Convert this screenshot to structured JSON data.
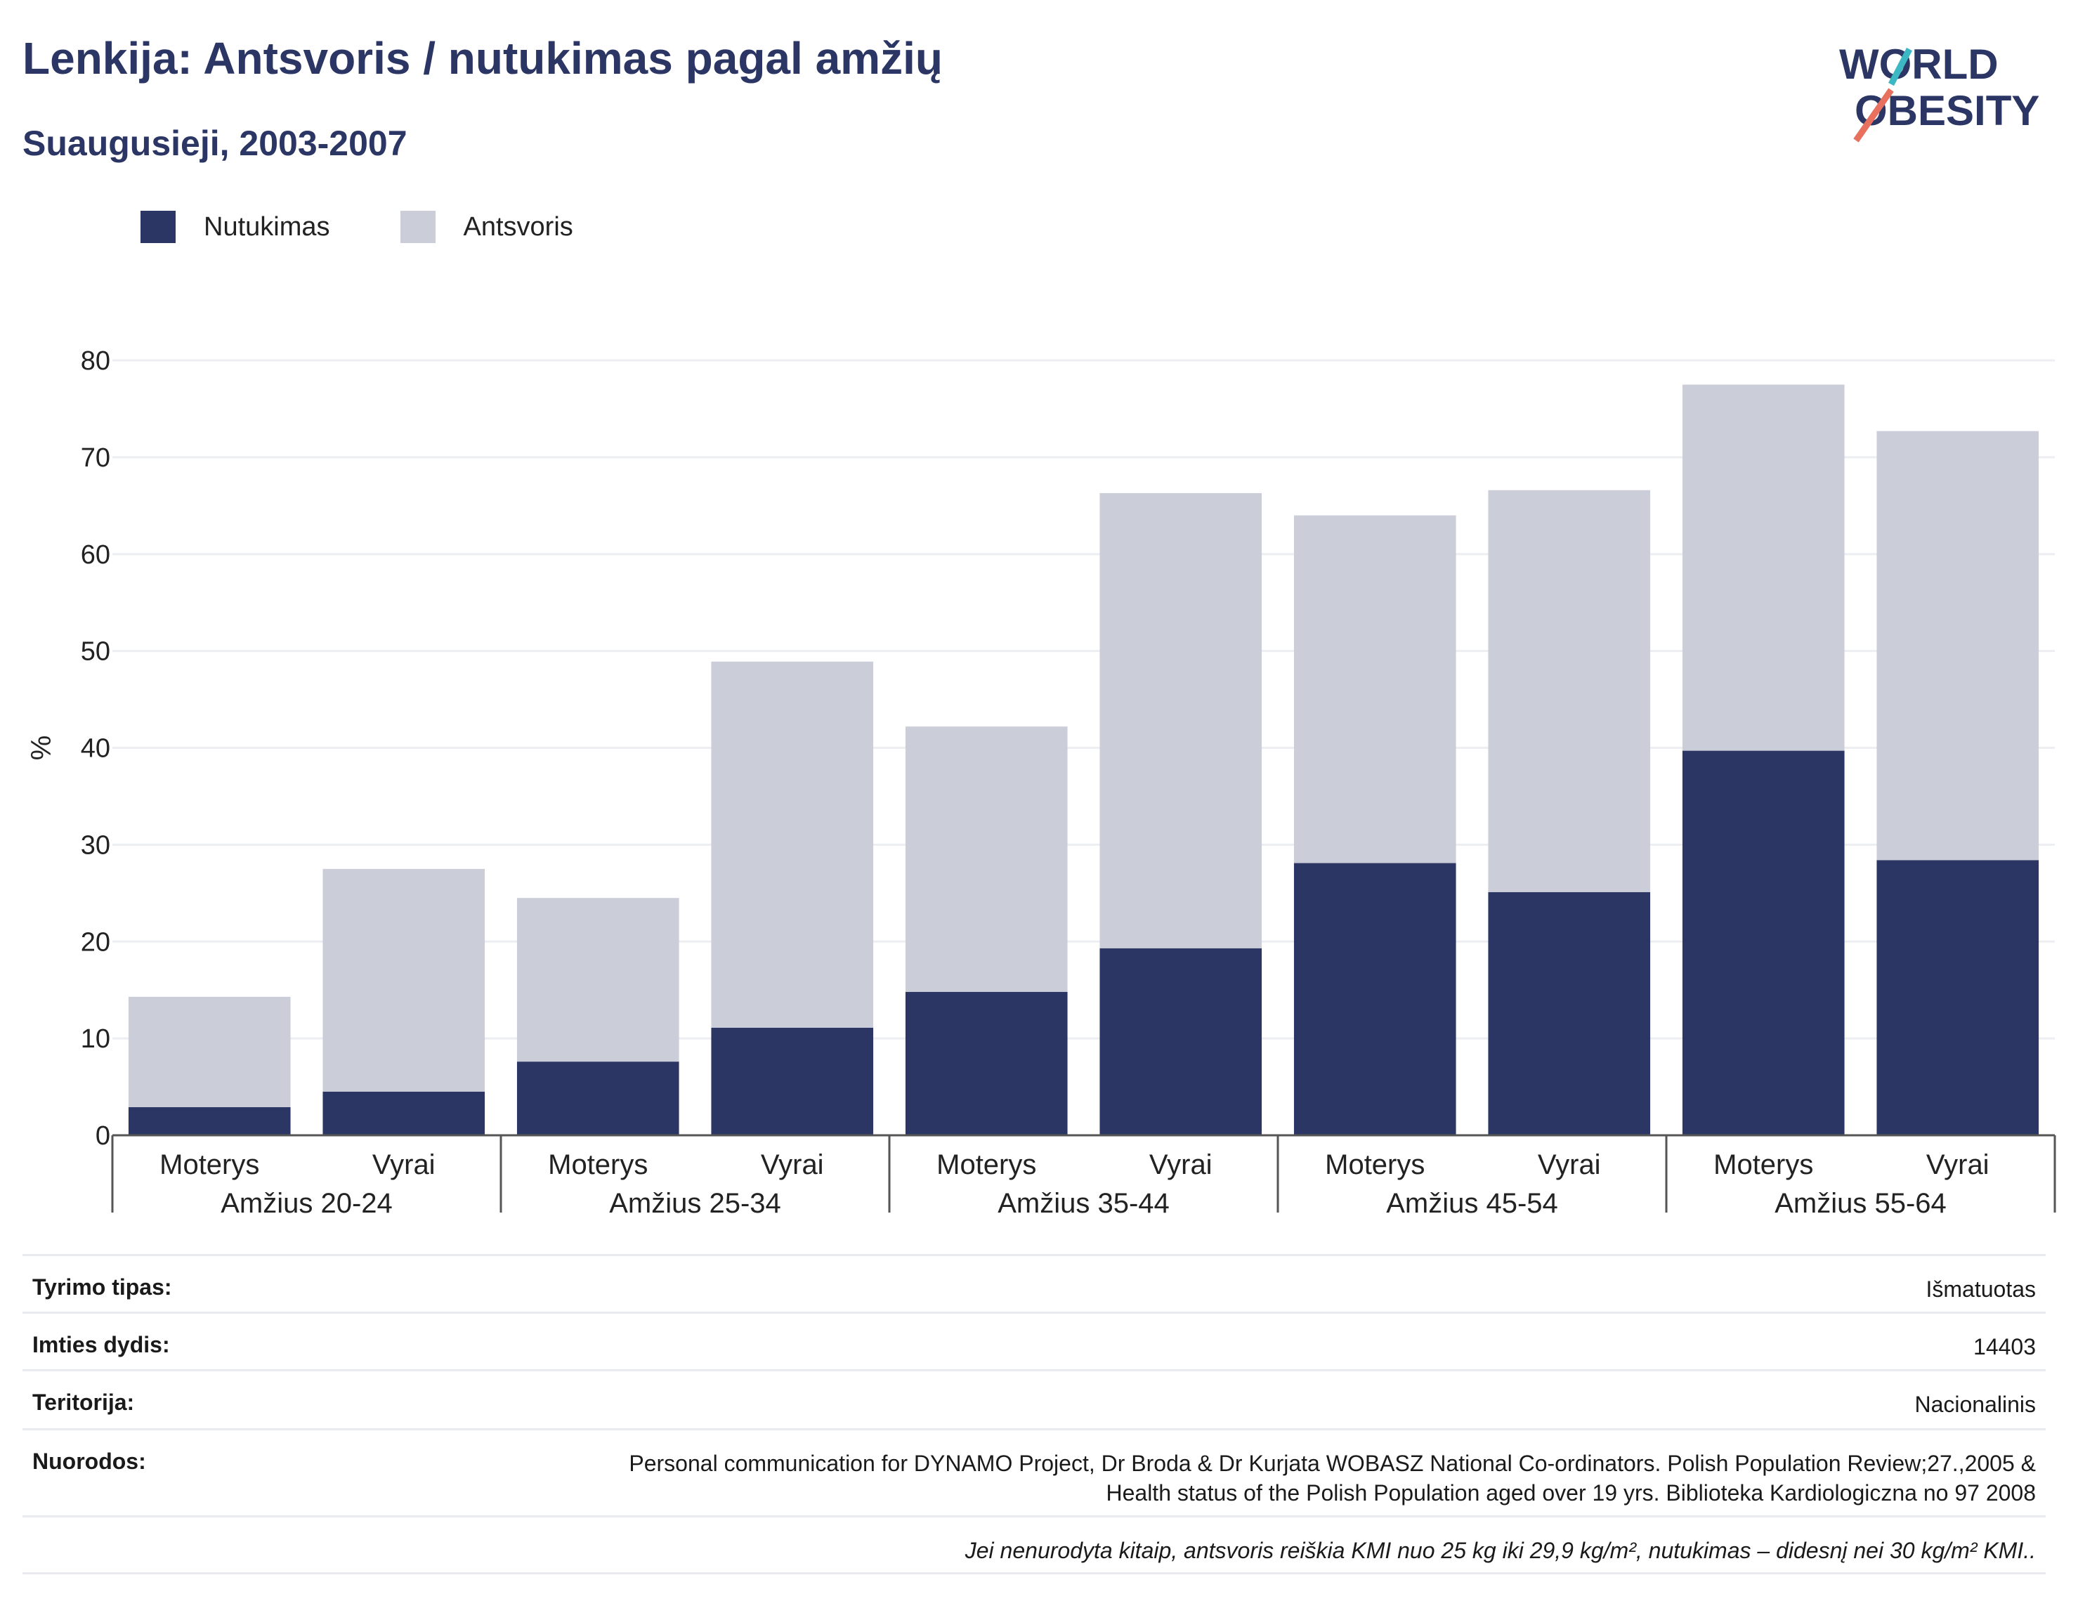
{
  "header": {
    "title": "Lenkija: Antsvoris / nutukimas pagal amžių",
    "subtitle": "Suaugusieji, 2003-2007"
  },
  "logo": {
    "line1": "WORLD",
    "line2": "OBESITY"
  },
  "colors": {
    "obesity": "#2b3664",
    "overweight": "#cbcdd9",
    "title": "#2b3664",
    "logo_teal": "#3bb8c4",
    "logo_coral": "#e8705e"
  },
  "chart_data": {
    "type": "bar",
    "stacked": true,
    "ylabel": "%",
    "ylim": [
      0,
      80
    ],
    "yticks": [
      0,
      10,
      20,
      30,
      40,
      50,
      60,
      70,
      80
    ],
    "grid": true,
    "legend_position": "top-left",
    "groups": [
      "Amžius 20-24",
      "Amžius 25-34",
      "Amžius 35-44",
      "Amžius 45-54",
      "Amžius 55-64"
    ],
    "sexes": [
      "Moterys",
      "Vyrai"
    ],
    "categories": [
      "Moterys Amžius 20-24",
      "Vyrai Amžius 20-24",
      "Moterys Amžius 25-34",
      "Vyrai Amžius 25-34",
      "Moterys Amžius 35-44",
      "Vyrai Amžius 35-44",
      "Moterys Amžius 45-54",
      "Vyrai Amžius 45-54",
      "Moterys Amžius 55-64",
      "Vyrai Amžius 55-64"
    ],
    "series": [
      {
        "name": "Nutukimas",
        "values": [
          2.9,
          4.5,
          7.6,
          11.1,
          14.8,
          19.3,
          28.1,
          25.1,
          39.7,
          28.4
        ]
      },
      {
        "name": "Antsvoris",
        "values": [
          11.4,
          23.0,
          16.9,
          37.8,
          27.4,
          47.0,
          35.9,
          41.5,
          37.8,
          44.3
        ]
      }
    ]
  },
  "info": {
    "rows": [
      {
        "label": "Tyrimo tipas:",
        "value": "Išmatuotas"
      },
      {
        "label": "Imties dydis:",
        "value": "14403"
      },
      {
        "label": "Teritorija:",
        "value": "Nacionalinis"
      },
      {
        "label": "Nuorodos:",
        "value": "Personal communication for DYNAMO Project, Dr Broda & Dr Kurjata WOBASZ National Co-ordinators. Polish Population Review;27.,2005 & Health status of the Polish Population aged over 19 yrs. Biblioteka Kardiologiczna no 97 2008"
      }
    ],
    "note": "Jei nenurodyta kitaip, antsvoris reiškia KMI nuo 25 kg iki 29,9 kg/m², nutukimas – didesnį nei 30 kg/m² KMI.."
  }
}
